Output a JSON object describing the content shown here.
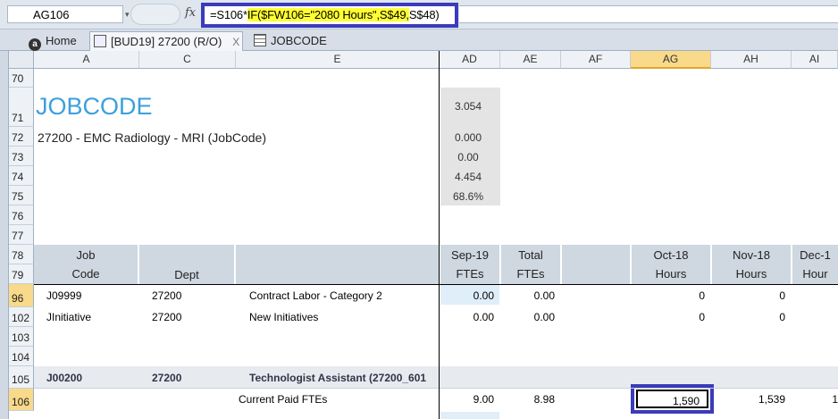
{
  "formula_bar": {
    "name_box": "AG106",
    "fx": "fx",
    "formula_pre": "=S106*",
    "formula_hl1": "IF($FW106=\"2080 Hours\",S$49,",
    "formula_post": "S$48)"
  },
  "tabs": [
    {
      "label": "Home"
    },
    {
      "label": "[BUD19] 27200 (R/O)",
      "close": "X"
    },
    {
      "label": "JOBCODE"
    }
  ],
  "columns": [
    "A",
    "C",
    "E",
    "AD",
    "AE",
    "AF",
    "AG",
    "AH",
    "AI"
  ],
  "rows": [
    "70",
    "71",
    "72",
    "73",
    "74",
    "75",
    "76",
    "77",
    "78",
    "79",
    "96",
    "102",
    "103",
    "104",
    "105",
    "106"
  ],
  "report": {
    "title": "JOBCODE",
    "subtitle": "27200 - EMC Radiology - MRI (JobCode)",
    "summary_values": [
      "3.054",
      "0.000",
      "0.00",
      "4.454",
      "68.6%"
    ]
  },
  "headers": {
    "job_line1": "Job",
    "job_line2": "Code",
    "dept": "Dept",
    "ad_line1": "Sep-19",
    "ad_line2": "FTEs",
    "ae_line1": "Total",
    "ae_line2": "FTEs",
    "ag_line1": "Oct-18",
    "ag_line2": "Hours",
    "ah_line1": "Nov-18",
    "ah_line2": "Hours",
    "ai_line1": "Dec-1",
    "ai_line2": "Hour"
  },
  "data_rows": [
    {
      "code": "J09999",
      "dept": "27200",
      "desc": "Contract Labor - Category 2",
      "ad": "0.00",
      "ae": "0.00",
      "ag": "0",
      "ah": "0"
    },
    {
      "code": "JInitiative",
      "dept": "27200",
      "desc": "New Initiatives",
      "ad": "0.00",
      "ae": "0.00",
      "ag": "0",
      "ah": "0"
    }
  ],
  "group_row": {
    "code": "J00200",
    "dept": "27200",
    "desc": "Technologist Assistant (27200_601"
  },
  "paid_row": {
    "label": "Current Paid FTEs",
    "ad": "9.00",
    "ae": "8.98",
    "ag": "1,590",
    "ah": "1,539",
    "ai": "1"
  }
}
